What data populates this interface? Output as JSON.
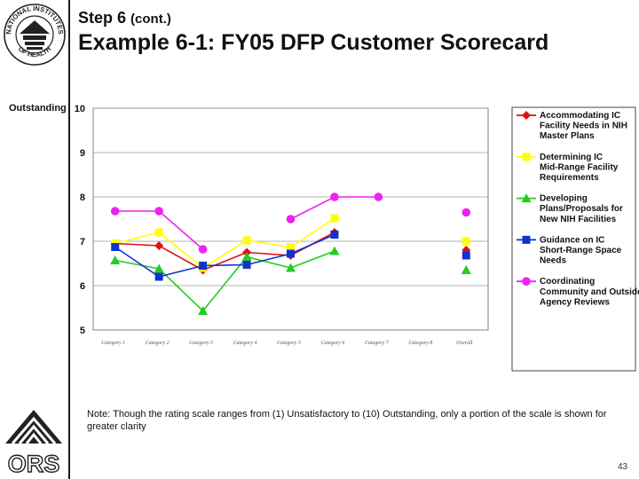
{
  "header": {
    "step": "Step 6",
    "step_suffix": "(cont.)",
    "title": "Example 6-1:  FY05 DFP Customer Scorecard"
  },
  "logos": {
    "top_text": "NATIONAL INSTITUTES OF HEALTH",
    "bottom_text": "ORS"
  },
  "axis_annotation": "Outstanding",
  "note": "Note:  Though the rating scale ranges from (1) Unsatisfactory to (10) Outstanding, only a portion of the scale is shown for greater clarity",
  "page_number": "43",
  "colors": {
    "s1": "#dd1111",
    "s2": "#ffff00",
    "s3": "#22cc22",
    "s4": "#1133cc",
    "s5": "#ee22ee"
  },
  "chart_data": {
    "type": "line",
    "ylim": [
      5,
      10
    ],
    "yticks": [
      5,
      6,
      7,
      8,
      9,
      10
    ],
    "grid": true,
    "legend_position": "right",
    "categories": [
      "Category 1",
      "Category 2",
      "Category 3",
      "Category 4",
      "Category 5",
      "Category 6",
      "Category 7",
      "Category 8",
      "Overall"
    ],
    "series": [
      {
        "name": "Accommodating IC Facility Needs in NIH Master Plans",
        "marker": "diamond",
        "values": [
          6.95,
          6.9,
          6.35,
          6.75,
          6.68,
          7.2,
          null,
          null,
          6.8
        ]
      },
      {
        "name": "Determining IC Mid-Range Facility Requirements",
        "marker": "square",
        "values": [
          6.95,
          7.2,
          6.4,
          7.02,
          6.87,
          7.52,
          null,
          null,
          7.0
        ]
      },
      {
        "name": "Developing Plans/Proposals for New NIH Facilities",
        "marker": "triangle",
        "values": [
          6.57,
          6.38,
          5.43,
          6.65,
          6.4,
          6.78,
          null,
          null,
          6.35
        ]
      },
      {
        "name": "Guidance on IC Short-Range Space Needs",
        "marker": "square",
        "values": [
          6.87,
          6.2,
          6.45,
          6.47,
          6.72,
          7.15,
          null,
          null,
          6.68
        ]
      },
      {
        "name": "Coordinating Community and Outside Agency Reviews",
        "marker": "circle",
        "values": [
          7.68,
          7.68,
          6.82,
          null,
          7.5,
          8.0,
          8.0,
          null,
          7.65
        ]
      }
    ]
  }
}
